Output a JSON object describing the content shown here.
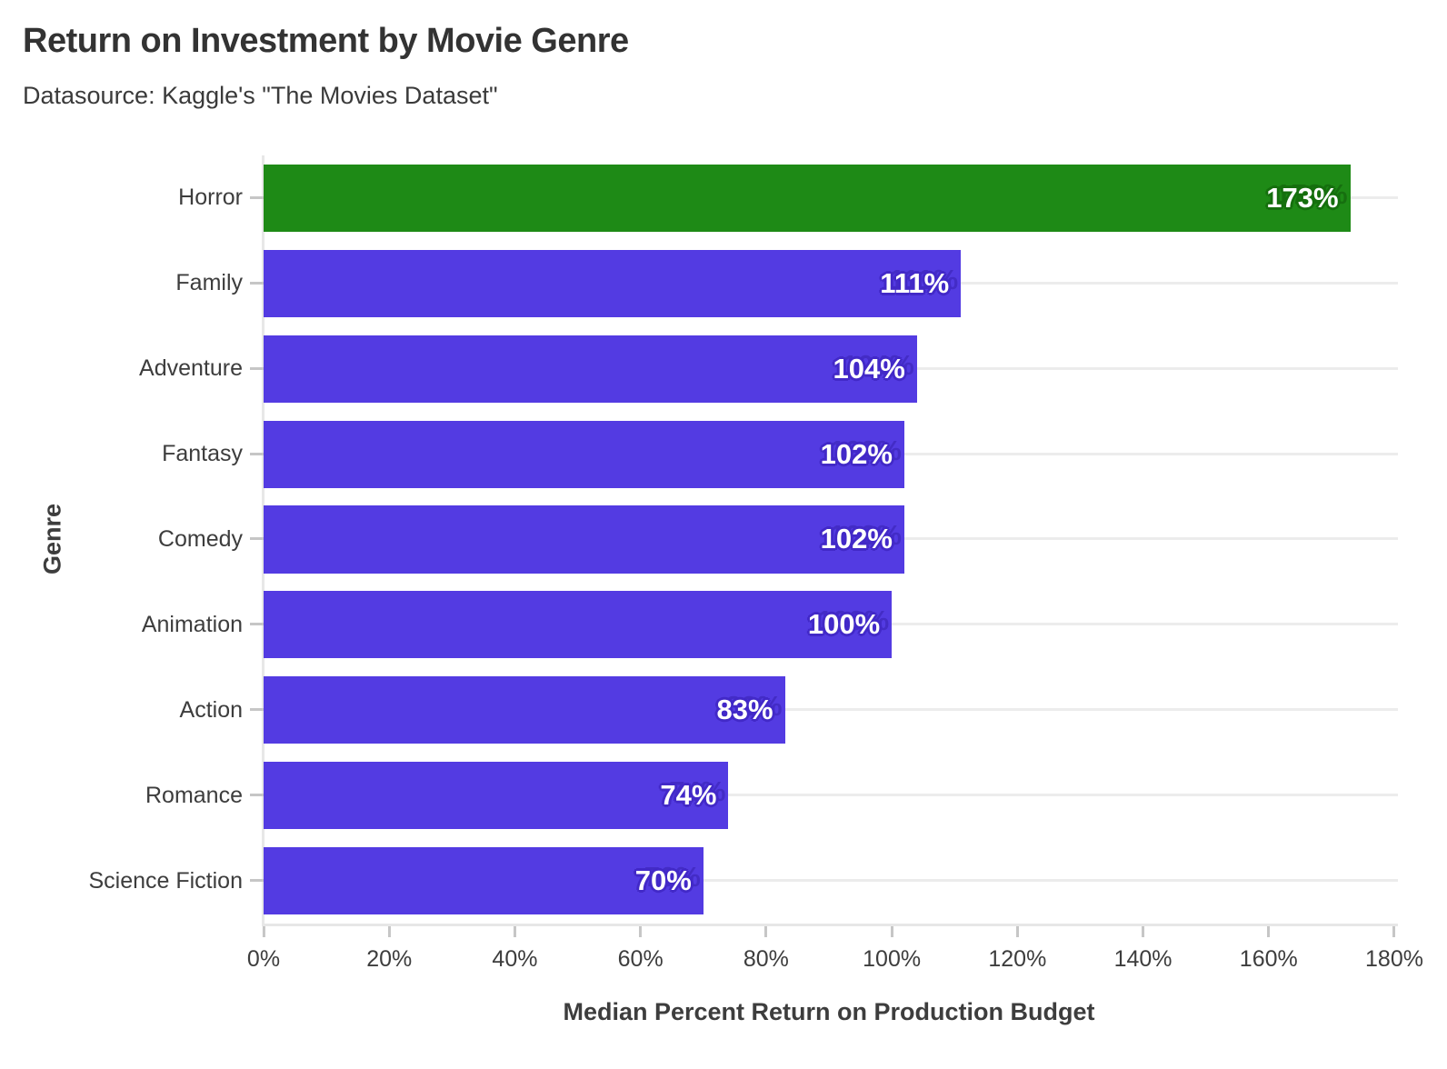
{
  "chart_data": {
    "type": "bar",
    "orientation": "horizontal",
    "title": "Return on Investment by Movie Genre",
    "subtitle": "Datasource: Kaggle's \"The Movies Dataset\"",
    "xlabel": "Median Percent Return on Production Budget",
    "ylabel": "Genre",
    "categories": [
      "Horror",
      "Family",
      "Adventure",
      "Fantasy",
      "Comedy",
      "Animation",
      "Action",
      "Romance",
      "Science Fiction"
    ],
    "values": [
      173,
      111,
      104,
      102,
      102,
      100,
      83,
      74,
      70
    ],
    "bar_labels": [
      "173%",
      "111%",
      "104%",
      "102%",
      "102%",
      "100%",
      "83%",
      "74%",
      "70%"
    ],
    "highlight_category": "Horror",
    "xlim": [
      0,
      180
    ],
    "xtick_values": [
      0,
      20,
      40,
      60,
      80,
      100,
      120,
      140,
      160,
      180
    ],
    "xtick_labels": [
      "0%",
      "20%",
      "40%",
      "60%",
      "80%",
      "100%",
      "120%",
      "140%",
      "160%",
      "180%"
    ],
    "grid": "horizontal-category-lines",
    "legend": "none"
  },
  "colors": {
    "background": "#ffffff",
    "title_text": "#333333",
    "subtitle_text": "#3a3a3a",
    "axis_text": "#3d3d3d",
    "bar_default": "#533be2",
    "bar_highlight": "#1e8a16",
    "halo_default": "#4229c8",
    "halo_highlight": "#156f0d",
    "ghost_default": "rgba(52,30,170,0.5)",
    "ghost_highlight": "rgba(14,84,7,0.5)",
    "value_text": "#ffffff",
    "gridline": "#ececec",
    "spine": "#e7e7e7",
    "tick": "#c6c6c6"
  }
}
